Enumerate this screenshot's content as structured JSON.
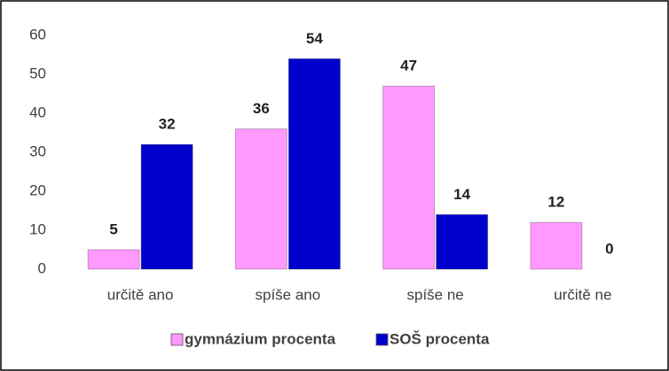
{
  "chart_data": {
    "type": "bar",
    "categories": [
      "určitě ano",
      "spíše ano",
      "spíše ne",
      "určitě ne"
    ],
    "series": [
      {
        "name": "gymnázium procenta",
        "color": "#ff99ff",
        "values": [
          5,
          36,
          47,
          12
        ]
      },
      {
        "name": "SOŠ procenta",
        "color": "#0000cc",
        "values": [
          32,
          54,
          14,
          0
        ]
      }
    ],
    "ylim": [
      0,
      60
    ],
    "yticks": [
      0,
      10,
      20,
      30,
      40,
      50,
      60
    ],
    "grid": false,
    "legend": "bottom"
  }
}
